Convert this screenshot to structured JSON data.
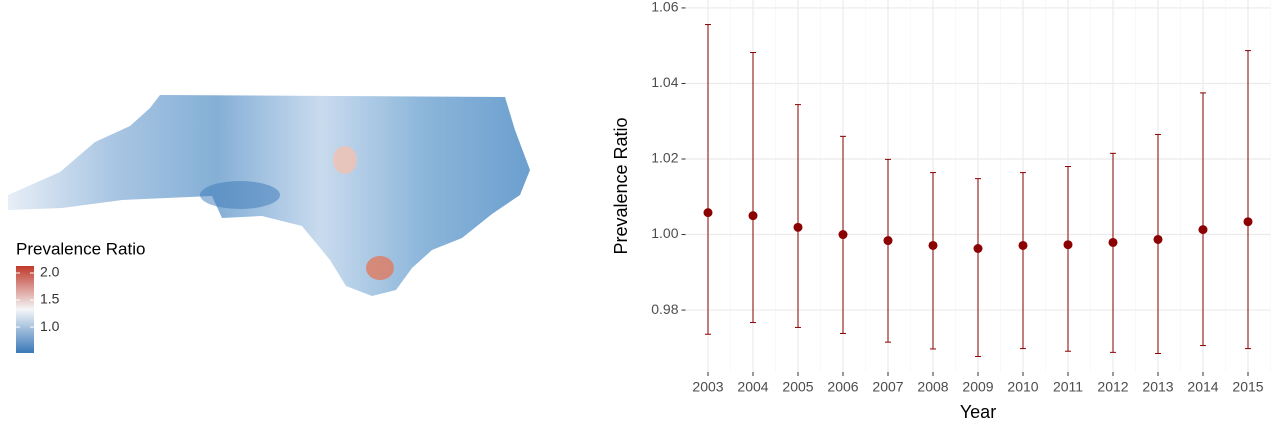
{
  "chart_data": [
    {
      "type": "colorbar",
      "legend_title": "Prevalence Ratio",
      "lim": [
        0.52,
        2.13
      ],
      "ticks": [
        {
          "value": 2,
          "label": "2.0"
        },
        {
          "value": 1.5,
          "label": "1.5"
        },
        {
          "value": 1,
          "label": "1.0"
        }
      ],
      "colors": [
        "#3a78b8",
        "#f4f6f8",
        "#c0392b"
      ]
    },
    {
      "type": "errorbar",
      "x_label": "Year",
      "y_label": "Prevalence Ratio",
      "categories": [
        "2003",
        "2004",
        "2005",
        "2006",
        "2007",
        "2008",
        "2009",
        "2010",
        "2011",
        "2012",
        "2013",
        "2014",
        "2015"
      ],
      "values": [
        1.0058,
        1.005,
        1.0019,
        1.0,
        0.9984,
        0.9971,
        0.9963,
        0.9971,
        0.9973,
        0.9979,
        0.9987,
        1.0013,
        1.0034
      ],
      "lower": [
        0.9736,
        0.9767,
        0.9754,
        0.9738,
        0.9715,
        0.9697,
        0.9677,
        0.9698,
        0.9691,
        0.9688,
        0.9685,
        0.9706,
        0.9698
      ],
      "upper": [
        1.0556,
        1.0482,
        1.0344,
        1.026,
        1.0199,
        1.0164,
        1.0148,
        1.0164,
        1.018,
        1.0215,
        1.0265,
        1.0375,
        1.0487
      ],
      "color": "#8b0000",
      "ylim": [
        0.9636,
        1.0621
      ],
      "yticks": [
        0.98,
        {
          "value": 1.0,
          "label": "1.00"
        },
        1.02,
        1.04,
        1.06
      ],
      "grid": true
    }
  ]
}
